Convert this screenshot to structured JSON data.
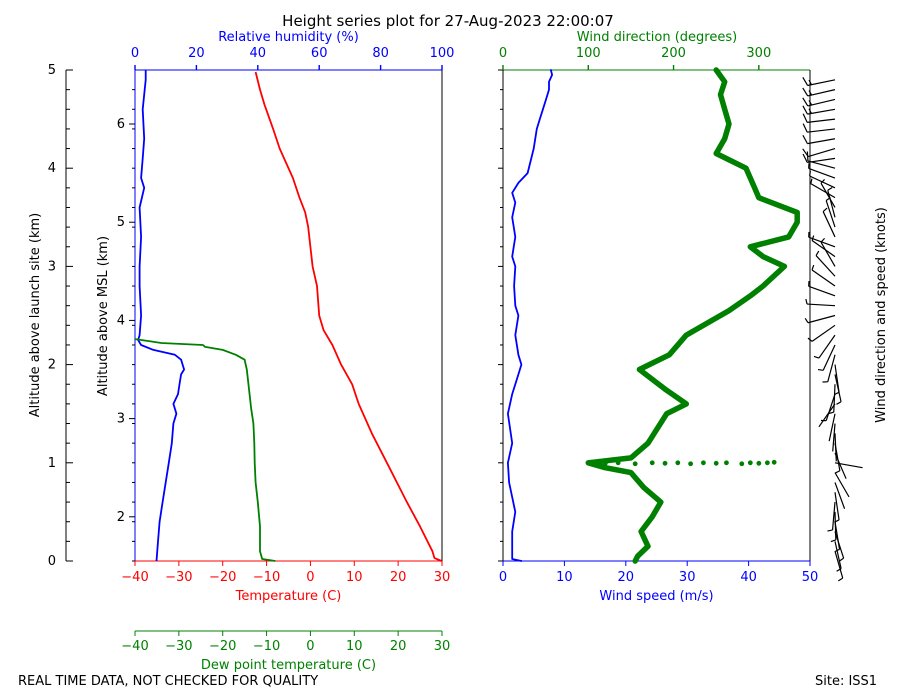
{
  "title": "Height series plot for 27-Aug-2023 22:00:07",
  "footer": {
    "left": "REAL TIME DATA, NOT CHECKED FOR QUALITY",
    "right": "Site: ISS1"
  },
  "colors": {
    "temperature": "#ff0000",
    "humidity": "#0000ff",
    "dewpoint": "#008000",
    "wind_speed": "#0000ff",
    "wind_dir": "#008000",
    "barbs": "#000000",
    "axis": "#000000"
  },
  "chart_data": [
    {
      "type": "line",
      "name": "thermo",
      "ylabel_outer": "Altitude above launch site (km)",
      "ylabel_inner": "Altitude above MSL (km)",
      "outer_ylim": [
        0,
        5
      ],
      "outer_yticks": [
        0,
        1,
        2,
        3,
        4,
        5
      ],
      "msl_offset_km": 1.55,
      "msl_yticks": [
        2,
        3,
        4,
        5,
        6
      ],
      "temp_axis": {
        "label": "Temperature (C)",
        "lim": [
          -40,
          30
        ],
        "ticks": [
          -40,
          -30,
          -20,
          -10,
          0,
          10,
          20,
          30
        ]
      },
      "rh_axis": {
        "label": "Relative humidity (%)",
        "lim": [
          0,
          100
        ],
        "ticks": [
          0,
          20,
          40,
          60,
          80,
          100
        ]
      },
      "dew_axis": {
        "label": "Dew point temperature (C)",
        "lim": [
          -40,
          30
        ],
        "ticks": [
          -40,
          -30,
          -20,
          -10,
          0,
          10,
          20,
          30
        ]
      },
      "series": [
        {
          "name": "Temperature",
          "axis": "temp",
          "points": [
            [
              29.9,
              0
            ],
            [
              28.3,
              0.03
            ],
            [
              27.8,
              0.1
            ],
            [
              25,
              0.35
            ],
            [
              22,
              0.6
            ],
            [
              18,
              0.95
            ],
            [
              14,
              1.3
            ],
            [
              11,
              1.6
            ],
            [
              9.5,
              1.8
            ],
            [
              7,
              2.0
            ],
            [
              5,
              2.2
            ],
            [
              3,
              2.35
            ],
            [
              2,
              2.5
            ],
            [
              1.5,
              2.8
            ],
            [
              0.5,
              3.0
            ],
            [
              0,
              3.2
            ],
            [
              -0.5,
              3.4
            ],
            [
              -1.2,
              3.55
            ],
            [
              -2.5,
              3.7
            ],
            [
              -4,
              3.9
            ],
            [
              -7,
              4.2
            ],
            [
              -8.5,
              4.4
            ],
            [
              -10.5,
              4.65
            ],
            [
              -11.5,
              4.8
            ],
            [
              -12.5,
              4.98
            ]
          ]
        },
        {
          "name": "Relative humidity",
          "axis": "rh",
          "points": [
            [
              7,
              0
            ],
            [
              7.5,
              0.2
            ],
            [
              8,
              0.4
            ],
            [
              9,
              0.6
            ],
            [
              10,
              0.8
            ],
            [
              11,
              1.0
            ],
            [
              12,
              1.2
            ],
            [
              12.5,
              1.4
            ],
            [
              13.5,
              1.5
            ],
            [
              12.5,
              1.6
            ],
            [
              14,
              1.7
            ],
            [
              14.5,
              1.8
            ],
            [
              15,
              1.9
            ],
            [
              16,
              1.95
            ],
            [
              15,
              2.05
            ],
            [
              13,
              2.1
            ],
            [
              6,
              2.15
            ],
            [
              2,
              2.2
            ],
            [
              1,
              2.25
            ],
            [
              1.5,
              2.3
            ],
            [
              2,
              2.5
            ],
            [
              1.5,
              2.8
            ],
            [
              1.5,
              3.0
            ],
            [
              2,
              3.3
            ],
            [
              1.5,
              3.6
            ],
            [
              3,
              3.8
            ],
            [
              2,
              3.9
            ],
            [
              2.5,
              4.1
            ],
            [
              3,
              4.3
            ],
            [
              2.5,
              4.6
            ],
            [
              3.5,
              4.9
            ],
            [
              3.5,
              5.0
            ]
          ]
        },
        {
          "name": "Dew point temperature",
          "axis": "dew",
          "points": [
            [
              -8,
              0
            ],
            [
              -11,
              0.02
            ],
            [
              -11.5,
              0.1
            ],
            [
              -11.5,
              0.35
            ],
            [
              -12,
              0.6
            ],
            [
              -12.5,
              0.8
            ],
            [
              -12.7,
              1.0
            ],
            [
              -12.8,
              1.2
            ],
            [
              -13,
              1.4
            ],
            [
              -13.5,
              1.55
            ],
            [
              -14,
              1.75
            ],
            [
              -14.5,
              1.95
            ],
            [
              -15,
              2.05
            ],
            [
              -17,
              2.1
            ],
            [
              -20,
              2.15
            ],
            [
              -24,
              2.18
            ],
            [
              -24.5,
              2.2
            ],
            [
              -34,
              2.22
            ],
            [
              -37,
              2.24
            ],
            [
              -40,
              2.26
            ]
          ]
        }
      ]
    },
    {
      "type": "line",
      "name": "wind",
      "ylim": [
        0,
        5
      ],
      "speed_axis": {
        "label": "Wind speed (m/s)",
        "lim": [
          0,
          50
        ],
        "ticks": [
          0,
          10,
          20,
          30,
          40,
          50
        ]
      },
      "dir_axis": {
        "label": "Wind direction (degrees)",
        "lim": [
          0,
          360
        ],
        "ticks": [
          0,
          100,
          200,
          300
        ]
      },
      "barb_label": "Wind direction and speed (knots)",
      "series": [
        {
          "name": "Wind speed",
          "axis": "speed",
          "points": [
            [
              3,
              0
            ],
            [
              1.5,
              0.02
            ],
            [
              1.5,
              0.1
            ],
            [
              1.5,
              0.3
            ],
            [
              2,
              0.5
            ],
            [
              1.5,
              0.65
            ],
            [
              1,
              0.8
            ],
            [
              0.8,
              1.0
            ],
            [
              1.5,
              1.2
            ],
            [
              0.8,
              1.5
            ],
            [
              1.5,
              1.7
            ],
            [
              2.5,
              1.9
            ],
            [
              3,
              2.0
            ],
            [
              2.5,
              2.1
            ],
            [
              2,
              2.3
            ],
            [
              2.5,
              2.5
            ],
            [
              2,
              2.6
            ],
            [
              1.8,
              2.8
            ],
            [
              2,
              3.0
            ],
            [
              1.5,
              3.1
            ],
            [
              2,
              3.3
            ],
            [
              1.5,
              3.5
            ],
            [
              2,
              3.65
            ],
            [
              1.5,
              3.75
            ],
            [
              2.5,
              3.85
            ],
            [
              4,
              3.95
            ],
            [
              5,
              4.2
            ],
            [
              5.5,
              4.4
            ],
            [
              6,
              4.5
            ],
            [
              6.5,
              4.6
            ],
            [
              7,
              4.7
            ],
            [
              7.5,
              4.8
            ],
            [
              7.5,
              4.88
            ],
            [
              8,
              4.95
            ],
            [
              7.8,
              5.0
            ]
          ]
        },
        {
          "name": "Wind direction",
          "axis": "dir",
          "points": [
            [
              155,
              0
            ],
            [
              158,
              0.05
            ],
            [
              170,
              0.15
            ],
            [
              162,
              0.3
            ],
            [
              175,
              0.45
            ],
            [
              185,
              0.6
            ],
            [
              165,
              0.75
            ],
            [
              150,
              0.9
            ],
            [
              120,
              0.95
            ],
            [
              100,
              1.0
            ],
            [
              150,
              1.05
            ],
            [
              170,
              1.2
            ],
            [
              192,
              1.5
            ],
            [
              215,
              1.6
            ],
            [
              190,
              1.75
            ],
            [
              160,
              1.95
            ],
            [
              195,
              2.1
            ],
            [
              215,
              2.3
            ],
            [
              265,
              2.55
            ],
            [
              290,
              2.7
            ],
            [
              305,
              2.8
            ],
            [
              330,
              3.0
            ],
            [
              305,
              3.1
            ],
            [
              290,
              3.2
            ],
            [
              335,
              3.3
            ],
            [
              345,
              3.45
            ],
            [
              345,
              3.55
            ],
            [
              300,
              3.7
            ],
            [
              295,
              3.8
            ],
            [
              285,
              4.0
            ],
            [
              250,
              4.15
            ],
            [
              260,
              4.3
            ],
            [
              265,
              4.45
            ],
            [
              260,
              4.6
            ],
            [
              255,
              4.75
            ],
            [
              260,
              4.88
            ],
            [
              250,
              5.0
            ]
          ]
        },
        {
          "name": "Wind direction scatter",
          "axis": "dir",
          "style": "dots",
          "points": [
            [
              120,
              0.995
            ],
            [
              135,
              1.0
            ],
            [
              155,
              0.99
            ],
            [
              175,
              1.0
            ],
            [
              190,
              0.995
            ],
            [
              205,
              1.0
            ],
            [
              220,
              0.99
            ],
            [
              235,
              1.0
            ],
            [
              250,
              0.995
            ],
            [
              262,
              1.0
            ],
            [
              280,
              0.99
            ],
            [
              290,
              1.0
            ],
            [
              300,
              0.995
            ],
            [
              310,
              1.0
            ],
            [
              318,
              1.005
            ]
          ]
        }
      ]
    }
  ]
}
